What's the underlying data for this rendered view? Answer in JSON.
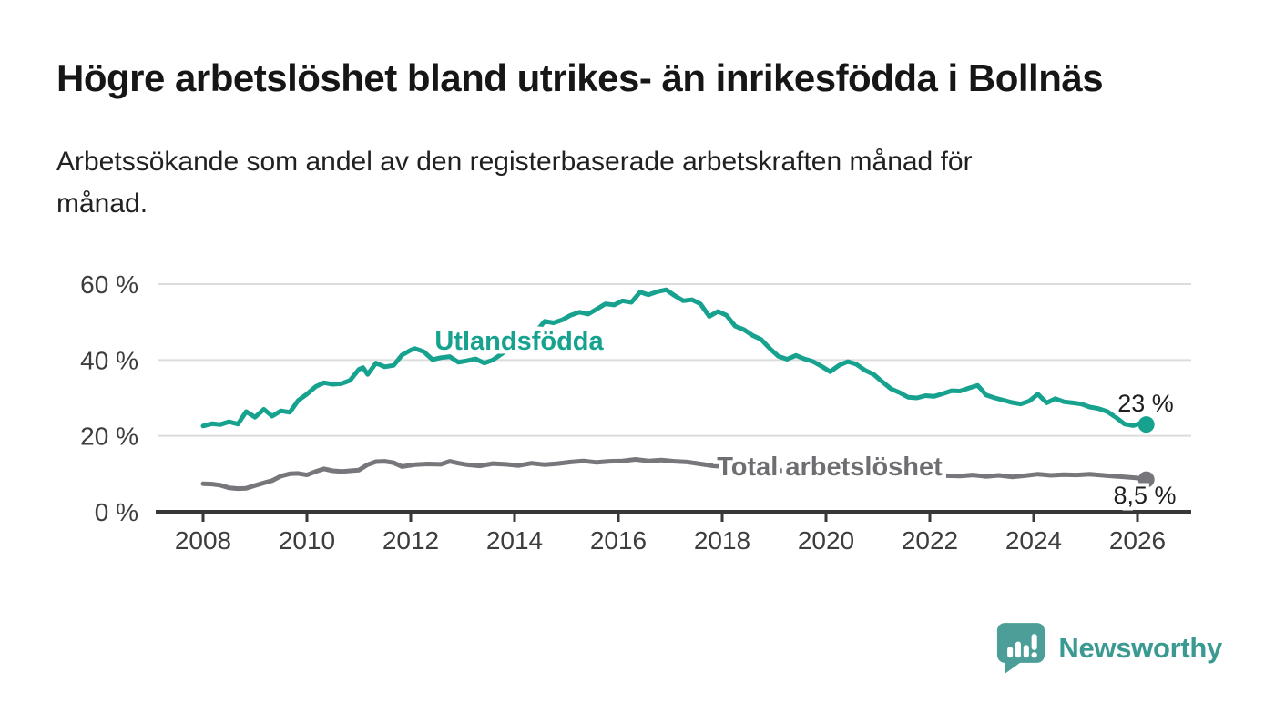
{
  "page": {
    "title": "Högre arbetslöshet bland utrikes- än inrikesfödda i Bollnäs",
    "subtitle": "Arbetssökande som andel av den registerbaserade arbetskraften månad för\nmånad."
  },
  "chart_data": {
    "type": "line",
    "title": "Högre arbetslöshet bland utrikes- än inrikesfödda i Bollnäs",
    "subtitle": "Arbetssökande som andel av den registerbaserade arbetskraften månad för månad.",
    "unit": "%",
    "xlabel": "",
    "ylabel": "",
    "xlim": [
      2007.1,
      2027.0
    ],
    "ylim": [
      0,
      62
    ],
    "grid": "horizontal",
    "legend_position": "inline-labels",
    "x_ticks": [
      2008,
      2010,
      2012,
      2014,
      2016,
      2018,
      2020,
      2022,
      2024,
      2026
    ],
    "y_ticks": [
      {
        "value": 0,
        "label": "0 %"
      },
      {
        "value": 20,
        "label": "20 %"
      },
      {
        "value": 40,
        "label": "40 %"
      },
      {
        "value": 60,
        "label": "60 %"
      }
    ],
    "series": [
      {
        "id": "utlandsfodda",
        "name": "Utlandsfödda",
        "color": "#16a28f",
        "label_color": "#16a28f",
        "end_label": "23 %",
        "end_value": 23,
        "points": [
          [
            2008.0,
            22.6
          ],
          [
            2008.17,
            23.2
          ],
          [
            2008.33,
            23.0
          ],
          [
            2008.5,
            23.7
          ],
          [
            2008.67,
            23.1
          ],
          [
            2008.83,
            26.4
          ],
          [
            2009.0,
            24.9
          ],
          [
            2009.17,
            27.0
          ],
          [
            2009.33,
            25.2
          ],
          [
            2009.5,
            26.6
          ],
          [
            2009.67,
            26.2
          ],
          [
            2009.83,
            29.3
          ],
          [
            2010.0,
            31.0
          ],
          [
            2010.17,
            33.0
          ],
          [
            2010.33,
            34.0
          ],
          [
            2010.5,
            33.6
          ],
          [
            2010.67,
            33.8
          ],
          [
            2010.83,
            34.6
          ],
          [
            2011.0,
            37.5
          ],
          [
            2011.08,
            38.0
          ],
          [
            2011.17,
            36.2
          ],
          [
            2011.33,
            39.2
          ],
          [
            2011.5,
            38.2
          ],
          [
            2011.67,
            38.6
          ],
          [
            2011.83,
            41.3
          ],
          [
            2012.0,
            42.6
          ],
          [
            2012.08,
            43.0
          ],
          [
            2012.25,
            42.2
          ],
          [
            2012.42,
            40.1
          ],
          [
            2012.58,
            40.6
          ],
          [
            2012.75,
            40.9
          ],
          [
            2012.92,
            39.4
          ],
          [
            2013.08,
            39.8
          ],
          [
            2013.25,
            40.3
          ],
          [
            2013.42,
            39.2
          ],
          [
            2013.58,
            40.0
          ],
          [
            2013.75,
            41.6
          ],
          [
            2013.92,
            43.6
          ],
          [
            2014.08,
            45.0
          ],
          [
            2014.25,
            45.4
          ],
          [
            2014.42,
            47.6
          ],
          [
            2014.58,
            50.2
          ],
          [
            2014.75,
            49.8
          ],
          [
            2014.92,
            50.6
          ],
          [
            2015.08,
            51.8
          ],
          [
            2015.25,
            52.6
          ],
          [
            2015.42,
            52.1
          ],
          [
            2015.58,
            53.4
          ],
          [
            2015.75,
            54.8
          ],
          [
            2015.92,
            54.5
          ],
          [
            2016.08,
            55.6
          ],
          [
            2016.25,
            55.2
          ],
          [
            2016.42,
            57.9
          ],
          [
            2016.58,
            57.2
          ],
          [
            2016.75,
            58.0
          ],
          [
            2016.92,
            58.5
          ],
          [
            2017.08,
            57.0
          ],
          [
            2017.25,
            55.6
          ],
          [
            2017.42,
            55.9
          ],
          [
            2017.58,
            54.8
          ],
          [
            2017.75,
            51.5
          ],
          [
            2017.92,
            52.8
          ],
          [
            2018.08,
            51.8
          ],
          [
            2018.25,
            48.9
          ],
          [
            2018.42,
            48.0
          ],
          [
            2018.58,
            46.5
          ],
          [
            2018.75,
            45.4
          ],
          [
            2018.92,
            43.0
          ],
          [
            2019.08,
            41.0
          ],
          [
            2019.25,
            40.2
          ],
          [
            2019.42,
            41.2
          ],
          [
            2019.58,
            40.3
          ],
          [
            2019.75,
            39.6
          ],
          [
            2019.92,
            38.3
          ],
          [
            2020.08,
            36.9
          ],
          [
            2020.25,
            38.6
          ],
          [
            2020.42,
            39.6
          ],
          [
            2020.58,
            38.9
          ],
          [
            2020.75,
            37.3
          ],
          [
            2020.92,
            36.2
          ],
          [
            2021.08,
            34.3
          ],
          [
            2021.25,
            32.4
          ],
          [
            2021.42,
            31.4
          ],
          [
            2021.58,
            30.2
          ],
          [
            2021.75,
            30.0
          ],
          [
            2021.92,
            30.6
          ],
          [
            2022.08,
            30.4
          ],
          [
            2022.25,
            31.1
          ],
          [
            2022.42,
            31.9
          ],
          [
            2022.58,
            31.8
          ],
          [
            2022.75,
            32.6
          ],
          [
            2022.92,
            33.3
          ],
          [
            2023.0,
            32.1
          ],
          [
            2023.08,
            30.8
          ],
          [
            2023.25,
            30.0
          ],
          [
            2023.42,
            29.4
          ],
          [
            2023.58,
            28.8
          ],
          [
            2023.75,
            28.4
          ],
          [
            2023.92,
            29.2
          ],
          [
            2024.08,
            31.0
          ],
          [
            2024.25,
            28.7
          ],
          [
            2024.42,
            29.8
          ],
          [
            2024.58,
            29.0
          ],
          [
            2024.75,
            28.7
          ],
          [
            2024.92,
            28.4
          ],
          [
            2025.08,
            27.6
          ],
          [
            2025.25,
            27.2
          ],
          [
            2025.42,
            26.4
          ],
          [
            2025.58,
            24.9
          ],
          [
            2025.75,
            23.1
          ],
          [
            2025.92,
            22.7
          ],
          [
            2026.08,
            23.4
          ],
          [
            2026.17,
            23.0
          ]
        ]
      },
      {
        "id": "total",
        "name": "Total arbetslöshet",
        "color": "#77767a",
        "label_color": "#6e6d71",
        "end_label": "8,5 %",
        "end_value": 8.5,
        "points": [
          [
            2008.0,
            7.4
          ],
          [
            2008.17,
            7.3
          ],
          [
            2008.33,
            7.0
          ],
          [
            2008.5,
            6.3
          ],
          [
            2008.67,
            6.1
          ],
          [
            2008.83,
            6.2
          ],
          [
            2009.0,
            6.9
          ],
          [
            2009.17,
            7.6
          ],
          [
            2009.33,
            8.2
          ],
          [
            2009.5,
            9.4
          ],
          [
            2009.67,
            10.0
          ],
          [
            2009.83,
            10.1
          ],
          [
            2010.0,
            9.7
          ],
          [
            2010.17,
            10.6
          ],
          [
            2010.33,
            11.3
          ],
          [
            2010.5,
            10.8
          ],
          [
            2010.67,
            10.6
          ],
          [
            2010.83,
            10.8
          ],
          [
            2011.0,
            11.0
          ],
          [
            2011.17,
            12.4
          ],
          [
            2011.33,
            13.2
          ],
          [
            2011.5,
            13.3
          ],
          [
            2011.67,
            12.9
          ],
          [
            2011.83,
            11.9
          ],
          [
            2012.08,
            12.4
          ],
          [
            2012.33,
            12.6
          ],
          [
            2012.58,
            12.5
          ],
          [
            2012.75,
            13.3
          ],
          [
            2012.92,
            12.8
          ],
          [
            2013.08,
            12.4
          ],
          [
            2013.33,
            12.1
          ],
          [
            2013.58,
            12.7
          ],
          [
            2013.83,
            12.5
          ],
          [
            2014.08,
            12.2
          ],
          [
            2014.33,
            12.8
          ],
          [
            2014.58,
            12.4
          ],
          [
            2014.83,
            12.7
          ],
          [
            2015.08,
            13.1
          ],
          [
            2015.33,
            13.4
          ],
          [
            2015.58,
            13.0
          ],
          [
            2015.83,
            13.3
          ],
          [
            2016.08,
            13.4
          ],
          [
            2016.33,
            13.8
          ],
          [
            2016.58,
            13.4
          ],
          [
            2016.83,
            13.6
          ],
          [
            2017.08,
            13.3
          ],
          [
            2017.33,
            13.1
          ],
          [
            2017.58,
            12.6
          ],
          [
            2017.83,
            12.1
          ],
          [
            2018.08,
            11.9
          ],
          [
            2018.33,
            11.6
          ],
          [
            2018.58,
            11.4
          ],
          [
            2018.83,
            11.2
          ],
          [
            2019.08,
            10.9
          ],
          [
            2019.33,
            10.7
          ],
          [
            2019.58,
            10.6
          ],
          [
            2019.83,
            10.8
          ],
          [
            2020.08,
            11.0
          ],
          [
            2020.33,
            11.6
          ],
          [
            2020.58,
            11.4
          ],
          [
            2020.83,
            11.1
          ],
          [
            2021.08,
            10.8
          ],
          [
            2021.33,
            10.4
          ],
          [
            2021.58,
            10.1
          ],
          [
            2021.83,
            9.9
          ],
          [
            2022.08,
            9.7
          ],
          [
            2022.33,
            9.5
          ],
          [
            2022.58,
            9.4
          ],
          [
            2022.83,
            9.7
          ],
          [
            2023.08,
            9.3
          ],
          [
            2023.33,
            9.6
          ],
          [
            2023.58,
            9.2
          ],
          [
            2023.83,
            9.5
          ],
          [
            2024.08,
            9.9
          ],
          [
            2024.33,
            9.6
          ],
          [
            2024.58,
            9.8
          ],
          [
            2024.83,
            9.7
          ],
          [
            2025.08,
            9.9
          ],
          [
            2025.42,
            9.5
          ],
          [
            2025.75,
            9.2
          ],
          [
            2026.0,
            8.9
          ],
          [
            2026.17,
            8.5
          ]
        ]
      }
    ]
  },
  "footer": {
    "brand": "Newsworthy"
  }
}
